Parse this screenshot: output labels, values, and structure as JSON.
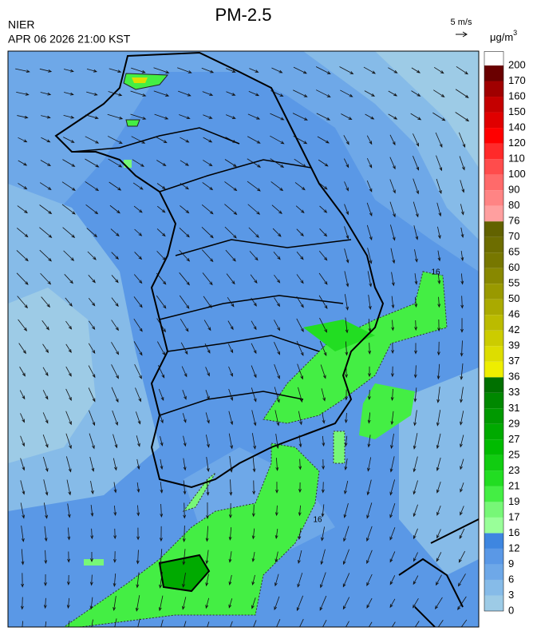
{
  "header": {
    "title": "PM-2.5",
    "agency": "NIER",
    "timestamp": "APR 06 2026 21:00 KST",
    "wind_scale": "5 m/s",
    "unit": "μg/m",
    "unit_power": "3"
  },
  "colorbar": {
    "bounds": [
      0,
      3,
      6,
      9,
      12,
      16,
      17,
      19,
      21,
      23,
      25,
      27,
      29,
      31,
      33,
      36,
      37,
      39,
      42,
      46,
      50,
      55,
      60,
      65,
      70,
      76,
      80,
      90,
      100,
      110,
      120,
      140,
      150,
      160,
      170,
      200
    ],
    "colors": [
      "#9dcbe6",
      "#86bbe8",
      "#6ea8e8",
      "#5a98e6",
      "#3e86e0",
      "#99ff99",
      "#77f777",
      "#44ee44",
      "#22dd22",
      "#11cc11",
      "#00bb00",
      "#00aa00",
      "#009900",
      "#008800",
      "#007000",
      "#eeee00",
      "#dddd00",
      "#cccc00",
      "#bbbb00",
      "#aaaa00",
      "#999900",
      "#888800",
      "#777700",
      "#6d6d00",
      "#626200",
      "#ff9f9f",
      "#ff8484",
      "#ff6a6a",
      "#ff4c4c",
      "#ff2a2a",
      "#ff0000",
      "#e00000",
      "#c40000",
      "#a00000",
      "#6a0000"
    ]
  },
  "contour_labels": [
    "16",
    "16"
  ]
}
